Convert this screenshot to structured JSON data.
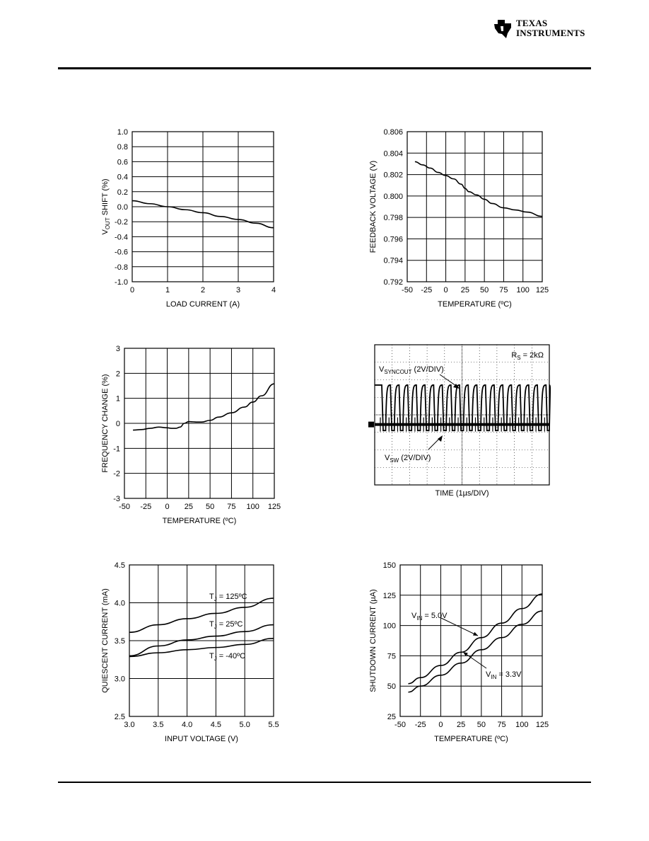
{
  "header": {
    "logo_line1": "TEXAS",
    "logo_line2": "INSTRUMENTS",
    "rule_color": "#000000"
  },
  "chart_data": [
    {
      "id": "vout-shift",
      "type": "line",
      "xlabel": "LOAD CURRENT (A)",
      "ylabel": "V",
      "ylabel_sub": "OUT",
      "ylabel_rest": " SHIFT (%)",
      "xlim": [
        0,
        4
      ],
      "ylim": [
        -1.0,
        1.0
      ],
      "x_ticks": [
        "0",
        "1",
        "2",
        "3",
        "4"
      ],
      "y_ticks": [
        "-1.0",
        "-0.8",
        "-0.6",
        "-0.4",
        "-0.2",
        "0.0",
        "0.2",
        "0.4",
        "0.6",
        "0.8",
        "1.0"
      ],
      "grid": true,
      "series": [
        {
          "x": [
            0,
            0.5,
            1,
            1.5,
            2,
            2.5,
            3,
            3.5,
            4
          ],
          "y": [
            0.08,
            0.04,
            0.0,
            -0.04,
            -0.08,
            -0.13,
            -0.17,
            -0.22,
            -0.28
          ]
        }
      ],
      "annotations": []
    },
    {
      "id": "feedback-voltage",
      "type": "line",
      "xlabel": "TEMPERATURE (ºC)",
      "ylabel": "FEEDBACK VOLTAGE (V)",
      "xlim": [
        -50,
        125
      ],
      "ylim": [
        0.792,
        0.806
      ],
      "x_ticks": [
        "-50",
        "-25",
        "0",
        "25",
        "50",
        "75",
        "100",
        "125"
      ],
      "y_ticks": [
        "0.792",
        "0.794",
        "0.796",
        "0.798",
        "0.800",
        "0.802",
        "0.804",
        "0.806"
      ],
      "grid": true,
      "series": [
        {
          "x": [
            -40,
            -30,
            -20,
            -10,
            0,
            10,
            20,
            25,
            30,
            40,
            50,
            60,
            75,
            90,
            105,
            125
          ],
          "y": [
            0.8032,
            0.8029,
            0.8026,
            0.8022,
            0.8019,
            0.8016,
            0.8011,
            0.8007,
            0.8004,
            0.8001,
            0.7997,
            0.7993,
            0.7989,
            0.7987,
            0.7985,
            0.7981
          ]
        }
      ],
      "annotations": []
    },
    {
      "id": "frequency-change",
      "type": "line",
      "xlabel": "TEMPERATURE (ºC)",
      "ylabel": "FREQUENCY CHANGE (%)",
      "xlim": [
        -50,
        125
      ],
      "ylim": [
        -3,
        3
      ],
      "x_ticks": [
        "-50",
        "-25",
        "0",
        "25",
        "50",
        "75",
        "100",
        "125"
      ],
      "y_ticks": [
        "-3",
        "-2",
        "-1",
        "0",
        "1",
        "2",
        "3"
      ],
      "grid": true,
      "series": [
        {
          "x": [
            -40,
            -30,
            -20,
            -10,
            0,
            5,
            10,
            15,
            20,
            25,
            30,
            35,
            40,
            50,
            60,
            75,
            90,
            100,
            110,
            125
          ],
          "y": [
            -0.27,
            -0.25,
            -0.2,
            -0.15,
            -0.18,
            -0.2,
            -0.2,
            -0.15,
            0.0,
            0.07,
            0.06,
            0.05,
            0.05,
            0.12,
            0.25,
            0.42,
            0.65,
            0.85,
            1.1,
            1.58
          ]
        }
      ],
      "annotations": []
    },
    {
      "id": "scope-waveform",
      "type": "scope",
      "xlabel": "TIME (1µs/DIV)",
      "grid": true,
      "labels": {
        "rs_main": "R",
        "rs_sub": "S",
        "rs_rest": " = 2kΩ",
        "sync_main": "V",
        "sync_sub": "SYNCOUT",
        "sync_rest": " (2V/DIV)",
        "sw_main": "V",
        "sw_sub": "SW",
        "sw_rest": " (2V/DIV)"
      },
      "waveform": {
        "sync_period_div": 0.495,
        "sync_high_fraction": 0.55,
        "sw_period_div": 0.495
      }
    },
    {
      "id": "quiescent-current",
      "type": "line",
      "xlabel": "INPUT VOLTAGE (V)",
      "ylabel": "QUIESCENT CURRENT (mA)",
      "xlim": [
        3.0,
        5.5
      ],
      "ylim": [
        2.5,
        4.5
      ],
      "x_ticks": [
        "3.0",
        "3.5",
        "4.0",
        "4.5",
        "5.0",
        "5.5"
      ],
      "y_ticks": [
        "2.5",
        "3.0",
        "3.5",
        "4.0",
        "4.5"
      ],
      "grid": true,
      "series": [
        {
          "x": [
            3.0,
            3.5,
            4.0,
            4.5,
            5.0,
            5.5
          ],
          "y": [
            3.61,
            3.71,
            3.79,
            3.86,
            3.94,
            4.06
          ]
        },
        {
          "x": [
            3.0,
            3.5,
            4.0,
            4.5,
            5.0,
            5.5
          ],
          "y": [
            3.3,
            3.43,
            3.51,
            3.56,
            3.62,
            3.71
          ]
        },
        {
          "x": [
            3.0,
            3.5,
            4.0,
            4.5,
            5.0,
            5.5
          ],
          "y": [
            3.29,
            3.34,
            3.38,
            3.41,
            3.45,
            3.53
          ]
        }
      ],
      "annotations": [
        {
          "main": "T",
          "sub": "J",
          "rest": " = 125ºC"
        },
        {
          "main": "T",
          "sub": "J",
          "rest": " = 25ºC"
        },
        {
          "main": "T",
          "sub": "J",
          "rest": " = -40ºC"
        }
      ]
    },
    {
      "id": "shutdown-current",
      "type": "line",
      "xlabel": "TEMPERATURE (ºC)",
      "ylabel": "SHUTDOWN CURRENT (µA)",
      "xlim": [
        -50,
        125
      ],
      "ylim": [
        25,
        150
      ],
      "x_ticks": [
        "-50",
        "-25",
        "0",
        "25",
        "50",
        "75",
        "100",
        "125"
      ],
      "y_ticks": [
        "25",
        "50",
        "75",
        "100",
        "125",
        "150"
      ],
      "grid": true,
      "series": [
        {
          "x": [
            -40,
            -25,
            0,
            25,
            50,
            75,
            100,
            125
          ],
          "y": [
            52,
            57,
            67,
            78,
            90,
            102,
            114,
            126
          ]
        },
        {
          "x": [
            -40,
            -25,
            0,
            25,
            50,
            75,
            100,
            125
          ],
          "y": [
            45,
            50,
            59,
            69,
            80,
            90,
            101,
            112
          ]
        }
      ],
      "annotations": [
        {
          "main": "V",
          "sub": "IN",
          "rest": " = 5.0V"
        },
        {
          "main": "V",
          "sub": "IN",
          "rest": " = 3.3V"
        }
      ]
    }
  ]
}
